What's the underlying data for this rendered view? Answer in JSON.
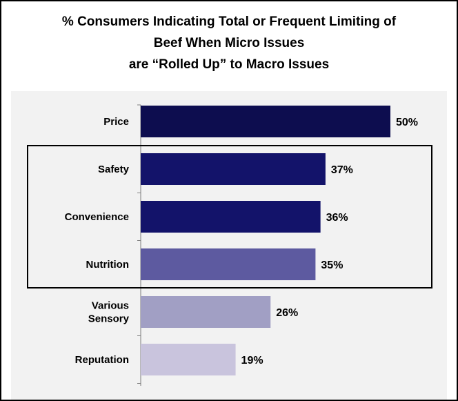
{
  "chart_data": {
    "type": "bar",
    "orientation": "horizontal",
    "title_lines": [
      "% Consumers Indicating Total or Frequent Limiting of",
      "Beef When Micro Issues",
      "are “Rolled Up” to Macro Issues"
    ],
    "categories": [
      "Price",
      "Safety",
      "Convenience",
      "Nutrition",
      "Various Sensory",
      "Reputation"
    ],
    "category_lines": [
      [
        "Price"
      ],
      [
        "Safety"
      ],
      [
        "Convenience"
      ],
      [
        "Nutrition"
      ],
      [
        "Various",
        "Sensory"
      ],
      [
        "Reputation"
      ]
    ],
    "values": [
      50,
      37,
      36,
      35,
      26,
      19
    ],
    "value_labels": [
      "50%",
      "37%",
      "36%",
      "35%",
      "26%",
      "19%"
    ],
    "bar_colors": [
      "#0d0d4f",
      "#13136a",
      "#13136a",
      "#5d5aa0",
      "#a19fc4",
      "#c9c4dd"
    ],
    "highlighted_categories": [
      "Safety",
      "Convenience",
      "Nutrition"
    ],
    "xlim": [
      0,
      50
    ],
    "grid": false,
    "legend": "none"
  }
}
